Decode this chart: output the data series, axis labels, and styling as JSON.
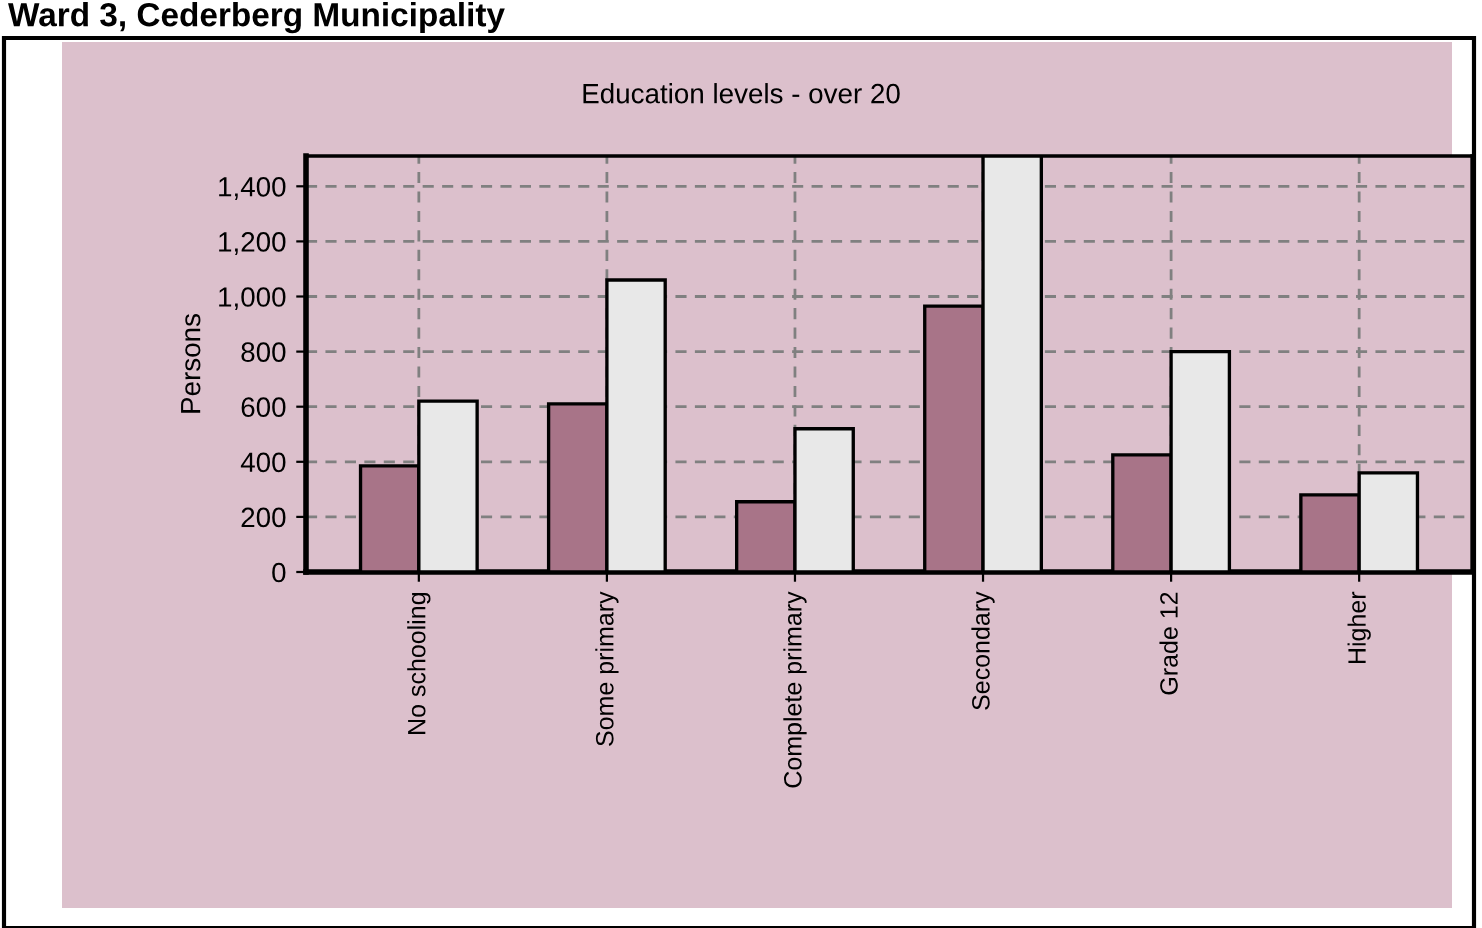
{
  "chart_data": {
    "type": "bar",
    "title": "Education levels - over 20",
    "subtitle": "Ward 3, Cederberg Municipality",
    "ylabel": "Persons",
    "categories": [
      "No schooling",
      "Some primary",
      "Complete primary",
      "Secondary",
      "Grade 12",
      "Higher"
    ],
    "series": [
      {
        "color": "#a87488",
        "values": [
          385,
          610,
          255,
          965,
          425,
          280
        ]
      },
      {
        "color": "#e8e8e8",
        "values": [
          620,
          1060,
          520,
          1510,
          800,
          360
        ]
      }
    ],
    "ylim": [
      0,
      1510
    ],
    "yticks": [
      0,
      200,
      400,
      600,
      800,
      {
        "value": 1000,
        "label": "1,000"
      },
      {
        "value": 1200,
        "label": "1,200"
      },
      {
        "value": 1400,
        "label": "1,400"
      }
    ],
    "grid": true
  }
}
